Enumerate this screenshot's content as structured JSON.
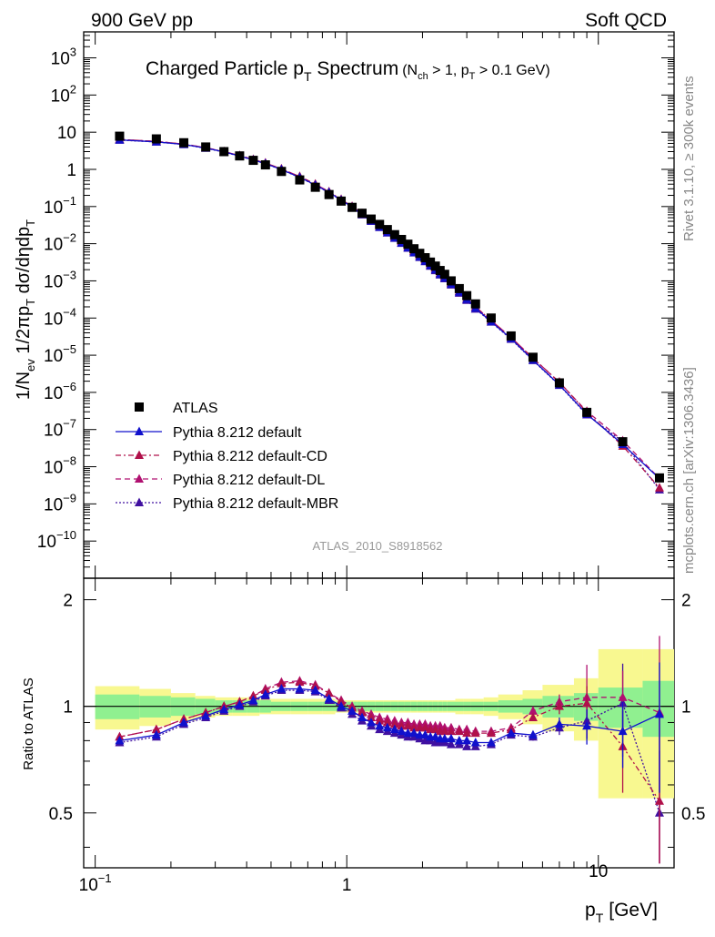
{
  "header": {
    "left": "900 GeV pp",
    "right": "Soft QCD"
  },
  "title": {
    "main": "Charged Particle p",
    "main_sub": "T",
    "main_tail": " Spectrum",
    "cut": "(N",
    "cut_sub": "ch",
    "cut_mid": " > 1, p",
    "cut_sub2": "T",
    "cut_tail": " > 0.1 GeV)"
  },
  "side_labels": {
    "rivet": "Rivet 3.1.10, ≥ 300k events",
    "mcplots": "mcplots.cern.ch [arXiv:1306.3436]"
  },
  "analysis_id": "ATLAS_2010_S8918562",
  "colors": {
    "atlas": "#000000",
    "default": "#1010cc",
    "cd": "#b0104a",
    "dl": "#b01070",
    "mbr": "#4010a0",
    "band_inner": "#90f090",
    "band_outer": "#f8f890"
  },
  "chart_data": [
    {
      "type": "scatter",
      "scale": "log-log",
      "ylabel": "1/N_ev 1/2πp_T dσ/dηdp_T",
      "xlim": [
        0.09,
        20
      ],
      "ylim": [
        1e-11,
        5000
      ],
      "y_ticks": [
        {
          "v": 1000.0,
          "b": "10",
          "e": "3"
        },
        {
          "v": 100.0,
          "b": "10",
          "e": "2"
        },
        {
          "v": 10,
          "b": "10",
          "e": ""
        },
        {
          "v": 1,
          "b": "1",
          "e": ""
        },
        {
          "v": 0.1,
          "b": "10",
          "e": "−1"
        },
        {
          "v": 0.01,
          "b": "10",
          "e": "−2"
        },
        {
          "v": 0.001,
          "b": "10",
          "e": "−3"
        },
        {
          "v": 0.0001,
          "b": "10",
          "e": "−4"
        },
        {
          "v": 1e-05,
          "b": "10",
          "e": "−5"
        },
        {
          "v": 1e-06,
          "b": "10",
          "e": "−6"
        },
        {
          "v": 1e-07,
          "b": "10",
          "e": "−7"
        },
        {
          "v": 1e-08,
          "b": "10",
          "e": "−8"
        },
        {
          "v": 1e-09,
          "b": "10",
          "e": "−9"
        },
        {
          "v": 1e-10,
          "b": "10",
          "e": "−10"
        }
      ],
      "x": [
        0.125,
        0.175,
        0.225,
        0.275,
        0.325,
        0.375,
        0.425,
        0.475,
        0.55,
        0.65,
        0.75,
        0.85,
        0.95,
        1.05,
        1.15,
        1.25,
        1.35,
        1.45,
        1.55,
        1.65,
        1.75,
        1.85,
        1.95,
        2.05,
        2.15,
        2.25,
        2.35,
        2.45,
        2.6,
        2.8,
        3.0,
        3.25,
        3.75,
        4.5,
        5.5,
        7.0,
        9.0,
        12.5,
        17.5
      ],
      "series": [
        {
          "name": "ATLAS",
          "marker": "square",
          "values": [
            7.8,
            6.6,
            5.2,
            4.0,
            3.0,
            2.3,
            1.75,
            1.32,
            0.88,
            0.52,
            0.33,
            0.21,
            0.14,
            0.095,
            0.066,
            0.046,
            0.033,
            0.024,
            0.0175,
            0.013,
            0.0097,
            0.0073,
            0.0055,
            0.0042,
            0.0032,
            0.0025,
            0.0019,
            0.0015,
            0.001,
            0.00062,
            0.0004,
            0.00024,
            0.0001,
            3.3e-05,
            8.8e-06,
            1.8e-06,
            2.9e-07,
            4.7e-08,
            5e-09
          ]
        },
        {
          "name": "Pythia 8.212 default",
          "marker": "triangle",
          "values": [
            6.2,
            5.5,
            4.7,
            3.75,
            2.95,
            2.3,
            1.8,
            1.43,
            0.99,
            0.61,
            0.38,
            0.24,
            0.15,
            0.096,
            0.062,
            0.041,
            0.028,
            0.02,
            0.0143,
            0.0105,
            0.0078,
            0.0058,
            0.0044,
            0.0034,
            0.0026,
            0.002,
            0.0015,
            0.0012,
            0.00082,
            0.0005,
            0.00032,
            0.000185,
            8e-05,
            2.8e-05,
            7.4e-06,
            1.6e-06,
            2.6e-07,
            4e-08,
            4.8e-09
          ]
        },
        {
          "name": "Pythia 8.212 default-CD",
          "marker": "triangle",
          "values": [
            6.4,
            5.65,
            4.8,
            3.82,
            3.0,
            2.35,
            1.84,
            1.48,
            1.03,
            0.64,
            0.4,
            0.25,
            0.155,
            0.1,
            0.065,
            0.043,
            0.03,
            0.0215,
            0.0155,
            0.0115,
            0.0085,
            0.0063,
            0.0048,
            0.0037,
            0.0028,
            0.0022,
            0.0016,
            0.0013,
            0.00087,
            0.00052,
            0.00033,
            0.0002,
            8.6e-05,
            3e-05,
            8.3e-06,
            1.9e-06,
            2.9e-07,
            3.6e-08,
            2.7e-09
          ]
        },
        {
          "name": "Pythia 8.212 default-DL",
          "marker": "triangle",
          "values": [
            6.4,
            5.65,
            4.8,
            3.82,
            3.0,
            2.35,
            1.84,
            1.48,
            1.03,
            0.64,
            0.4,
            0.25,
            0.155,
            0.1,
            0.065,
            0.043,
            0.03,
            0.0215,
            0.0155,
            0.0115,
            0.0085,
            0.0063,
            0.0048,
            0.0037,
            0.0028,
            0.0022,
            0.0016,
            0.0013,
            0.00087,
            0.00052,
            0.00033,
            0.0002,
            8.6e-05,
            3e-05,
            8.4e-06,
            1.85e-06,
            3.1e-07,
            5e-08,
            4.8e-09
          ]
        },
        {
          "name": "Pythia 8.212 default-MBR",
          "marker": "triangle",
          "values": [
            6.1,
            5.45,
            4.65,
            3.7,
            2.9,
            2.28,
            1.78,
            1.42,
            0.98,
            0.6,
            0.375,
            0.235,
            0.148,
            0.094,
            0.06,
            0.04,
            0.0275,
            0.0195,
            0.014,
            0.0103,
            0.0076,
            0.0057,
            0.0043,
            0.0033,
            0.0025,
            0.0019,
            0.00145,
            0.00115,
            0.00078,
            0.00047,
            0.0003,
            0.000175,
            7.8e-05,
            2.7e-05,
            7.2e-06,
            1.55e-06,
            2.5e-07,
            4.7e-08,
            2.4e-09
          ]
        }
      ]
    },
    {
      "type": "scatter",
      "scale": "log-x",
      "ylabel": "Ratio to ATLAS",
      "xlabel": "p_T [GeV]",
      "xlim": [
        0.09,
        20
      ],
      "ylim": [
        0.35,
        2.3
      ],
      "y_ticks": [
        {
          "v": 2,
          "label": "2"
        },
        {
          "v": 1,
          "label": "1"
        },
        {
          "v": 0.5,
          "label": "0.5"
        }
      ],
      "x_ticks": [
        {
          "v": 0.1,
          "b": "10",
          "e": "−1"
        },
        {
          "v": 1,
          "b": "1",
          "e": ""
        },
        {
          "v": 10,
          "b": "10",
          "e": ""
        }
      ],
      "x": [
        0.125,
        0.175,
        0.225,
        0.275,
        0.325,
        0.375,
        0.425,
        0.475,
        0.55,
        0.65,
        0.75,
        0.85,
        0.95,
        1.05,
        1.15,
        1.25,
        1.35,
        1.45,
        1.55,
        1.65,
        1.75,
        1.85,
        1.95,
        2.05,
        2.15,
        2.25,
        2.35,
        2.45,
        2.6,
        2.8,
        3.0,
        3.25,
        3.75,
        4.5,
        5.5,
        7.0,
        9.0,
        12.5,
        17.5
      ],
      "bin_edges": [
        0.1,
        0.15,
        0.2,
        0.25,
        0.3,
        0.35,
        0.4,
        0.45,
        0.5,
        0.6,
        0.7,
        0.8,
        0.9,
        1.0,
        1.1,
        1.2,
        1.3,
        1.4,
        1.5,
        1.6,
        1.7,
        1.8,
        1.9,
        2.0,
        2.1,
        2.2,
        2.3,
        2.4,
        2.5,
        2.7,
        2.9,
        3.1,
        3.5,
        4.0,
        5.0,
        6.0,
        8.0,
        10.0,
        15.0,
        20.0
      ],
      "band_inner": [
        0.08,
        0.07,
        0.06,
        0.05,
        0.04,
        0.04,
        0.04,
        0.04,
        0.03,
        0.03,
        0.03,
        0.03,
        0.03,
        0.03,
        0.03,
        0.03,
        0.03,
        0.03,
        0.03,
        0.03,
        0.03,
        0.03,
        0.03,
        0.03,
        0.03,
        0.03,
        0.03,
        0.03,
        0.03,
        0.03,
        0.03,
        0.03,
        0.03,
        0.04,
        0.05,
        0.07,
        0.09,
        0.13,
        0.18
      ],
      "band_outer": [
        0.14,
        0.12,
        0.09,
        0.07,
        0.06,
        0.06,
        0.06,
        0.05,
        0.05,
        0.05,
        0.05,
        0.05,
        0.04,
        0.04,
        0.04,
        0.04,
        0.04,
        0.04,
        0.04,
        0.04,
        0.04,
        0.04,
        0.04,
        0.04,
        0.04,
        0.04,
        0.04,
        0.04,
        0.04,
        0.05,
        0.05,
        0.05,
        0.06,
        0.08,
        0.11,
        0.15,
        0.2,
        0.45,
        0.45
      ],
      "series": [
        {
          "name": "Pythia 8.212 default",
          "values": [
            0.8,
            0.83,
            0.9,
            0.94,
            0.98,
            1.01,
            1.04,
            1.08,
            1.12,
            1.12,
            1.11,
            1.05,
            1.0,
            0.97,
            0.93,
            0.9,
            0.88,
            0.87,
            0.86,
            0.85,
            0.84,
            0.84,
            0.83,
            0.83,
            0.82,
            0.82,
            0.81,
            0.81,
            0.81,
            0.8,
            0.8,
            0.79,
            0.79,
            0.84,
            0.83,
            0.89,
            0.88,
            0.85,
            0.95
          ],
          "err": [
            0,
            0,
            0,
            0,
            0,
            0,
            0,
            0,
            0,
            0,
            0,
            0,
            0,
            0,
            0,
            0,
            0,
            0,
            0,
            0,
            0,
            0,
            0,
            0,
            0,
            0,
            0,
            0,
            0,
            0,
            0,
            0,
            0,
            0,
            0.02,
            0.04,
            0.1,
            0.18,
            0.38
          ]
        },
        {
          "name": "Pythia 8.212 default-CD",
          "values": [
            0.82,
            0.86,
            0.92,
            0.96,
            1.0,
            1.03,
            1.07,
            1.11,
            1.16,
            1.17,
            1.14,
            1.09,
            1.03,
            0.99,
            0.96,
            0.93,
            0.91,
            0.9,
            0.89,
            0.88,
            0.88,
            0.87,
            0.87,
            0.87,
            0.86,
            0.86,
            0.85,
            0.85,
            0.85,
            0.85,
            0.84,
            0.84,
            0.84,
            0.86,
            0.93,
            1.0,
            1.02,
            0.77,
            0.54
          ],
          "err": [
            0,
            0,
            0,
            0,
            0,
            0,
            0,
            0,
            0,
            0,
            0,
            0,
            0,
            0,
            0,
            0,
            0,
            0,
            0,
            0,
            0,
            0,
            0,
            0,
            0,
            0,
            0,
            0,
            0,
            0,
            0,
            0,
            0,
            0,
            0.02,
            0.05,
            0.12,
            0.2,
            0.42
          ]
        },
        {
          "name": "Pythia 8.212 default-DL",
          "values": [
            0.82,
            0.86,
            0.92,
            0.96,
            1.0,
            1.03,
            1.07,
            1.12,
            1.17,
            1.18,
            1.15,
            1.09,
            1.04,
            1.0,
            0.97,
            0.95,
            0.93,
            0.92,
            0.91,
            0.9,
            0.9,
            0.89,
            0.89,
            0.89,
            0.88,
            0.88,
            0.88,
            0.87,
            0.87,
            0.86,
            0.86,
            0.85,
            0.85,
            0.87,
            0.97,
            1.03,
            1.06,
            1.06,
            0.96
          ],
          "err": [
            0,
            0,
            0,
            0,
            0,
            0,
            0,
            0,
            0,
            0,
            0,
            0,
            0,
            0,
            0,
            0,
            0,
            0,
            0,
            0,
            0,
            0,
            0,
            0,
            0,
            0,
            0,
            0,
            0,
            0,
            0,
            0,
            0,
            0,
            0.03,
            0.05,
            0.25,
            0.2,
            0.62
          ]
        },
        {
          "name": "Pythia 8.212 default-MBR",
          "values": [
            0.79,
            0.82,
            0.89,
            0.93,
            0.97,
            1.0,
            1.03,
            1.07,
            1.11,
            1.11,
            1.1,
            1.04,
            0.99,
            0.95,
            0.91,
            0.88,
            0.86,
            0.85,
            0.84,
            0.83,
            0.82,
            0.82,
            0.81,
            0.8,
            0.8,
            0.79,
            0.79,
            0.79,
            0.78,
            0.78,
            0.77,
            0.77,
            0.78,
            0.83,
            0.82,
            0.87,
            0.91,
            1.02,
            0.5
          ],
          "err": [
            0,
            0,
            0,
            0,
            0,
            0,
            0,
            0,
            0,
            0,
            0,
            0,
            0,
            0,
            0,
            0,
            0,
            0,
            0,
            0,
            0,
            0,
            0,
            0,
            0,
            0,
            0,
            0,
            0,
            0,
            0,
            0,
            0,
            0,
            0.02,
            0.04,
            0.1,
            0.3,
            0.25
          ]
        }
      ]
    }
  ]
}
